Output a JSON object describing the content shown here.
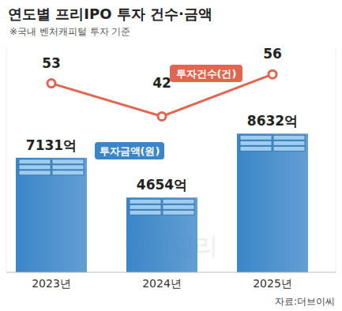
{
  "chart_data": {
    "type": "bar",
    "title": "연도별 프리IPO 투자 건수·금액",
    "subtitle": "※국내 벤처캐피털 투자 기준",
    "source": "자료:더브이씨",
    "watermark": "이데일리",
    "categories": [
      "2023년",
      "2024년",
      "2025년"
    ],
    "series": [
      {
        "name": "투자금액(원)",
        "type": "bar",
        "color": "#3b86c8",
        "values": [
          7131,
          4654,
          8632
        ],
        "value_labels": [
          "7131억",
          "4654억",
          "8632억"
        ]
      },
      {
        "name": "투자건수(건)",
        "type": "line",
        "color": "#e0664f",
        "axis": "y2",
        "marker": "circle",
        "values": [
          53,
          42,
          56
        ]
      }
    ],
    "ylim": [
      0,
      14000
    ],
    "y2lim": [
      -10,
      65
    ],
    "tick_labels": false,
    "grid": false,
    "data_labels": true
  }
}
